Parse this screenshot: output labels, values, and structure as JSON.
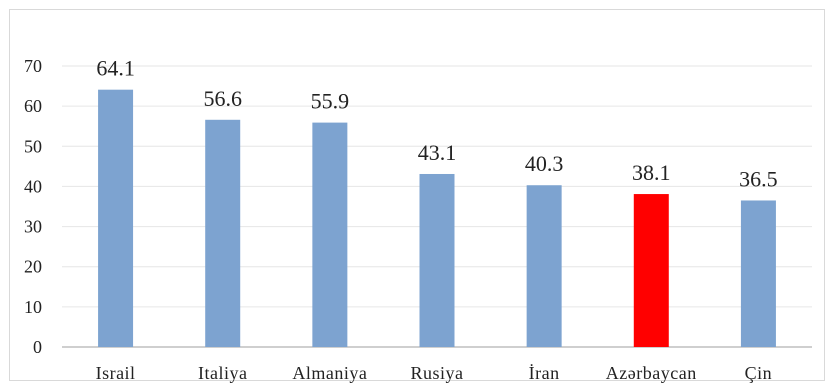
{
  "chart_data": {
    "type": "bar",
    "categories": [
      "Israil",
      "Italiya",
      "Almaniya",
      "Rusiya",
      "İran",
      "Azərbaycan",
      "Çin"
    ],
    "values": [
      64.1,
      56.6,
      55.9,
      43.1,
      40.3,
      38.1,
      36.5
    ],
    "data_labels": [
      "64.1",
      "56.6",
      "55.9",
      "43.1",
      "40.3",
      "38.1",
      "36.5"
    ],
    "y_ticks": [
      "0",
      "10",
      "20",
      "30",
      "40",
      "50",
      "60",
      "70"
    ],
    "ylim": [
      0,
      70
    ],
    "grid": true,
    "legend": "none",
    "title": "",
    "xlabel": "",
    "ylabel": "",
    "colors": {
      "bar": "#7da3d0",
      "highlight": "#ff0000",
      "grid": "#e6e6e6",
      "axis": "#bfbfbf"
    },
    "highlight_category": "Azərbaycan"
  }
}
